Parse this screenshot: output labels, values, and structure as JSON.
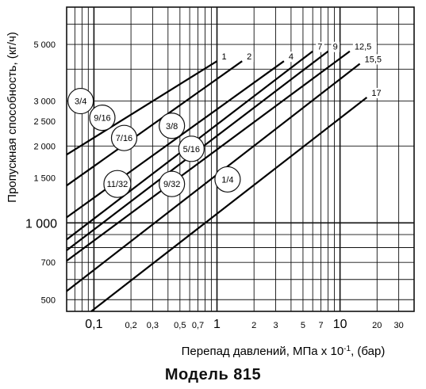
{
  "chart_data": {
    "type": "line",
    "title": "",
    "caption": "Модель 815",
    "xlabel_main": "Перепад давлений, МПа x 10",
    "xlabel_sup": "-1",
    "xlabel_tail": ", (бар)",
    "ylabel": "Пропускная способность, (кг/ч)",
    "x_scale": "log",
    "y_scale": "log",
    "xlim": [
      0.06,
      40
    ],
    "ylim": [
      450,
      7000
    ],
    "x_ticks": [
      {
        "value": 0.1,
        "label": "0,1",
        "major": true
      },
      {
        "value": 0.2,
        "label": "0,2",
        "major": false
      },
      {
        "value": 0.3,
        "label": "0,3",
        "major": false
      },
      {
        "value": 0.5,
        "label": "0,5",
        "major": false
      },
      {
        "value": 0.7,
        "label": "0,7",
        "major": false
      },
      {
        "value": 1,
        "label": "1",
        "major": true
      },
      {
        "value": 2,
        "label": "2",
        "major": false
      },
      {
        "value": 3,
        "label": "3",
        "major": false
      },
      {
        "value": 5,
        "label": "5",
        "major": false
      },
      {
        "value": 7,
        "label": "7",
        "major": false
      },
      {
        "value": 10,
        "label": "10",
        "major": true
      },
      {
        "value": 20,
        "label": "20",
        "major": false
      },
      {
        "value": 30,
        "label": "30",
        "major": false
      }
    ],
    "y_ticks": [
      {
        "value": 500,
        "label": "500",
        "major": false
      },
      {
        "value": 700,
        "label": "700",
        "major": false
      },
      {
        "value": 1000,
        "label": "1 000",
        "major": true
      },
      {
        "value": 1500,
        "label": "1 500",
        "major": false
      },
      {
        "value": 2000,
        "label": "2 000",
        "major": false
      },
      {
        "value": 2500,
        "label": "2 500",
        "major": false
      },
      {
        "value": 3000,
        "label": "3 000",
        "major": false
      },
      {
        "value": 5000,
        "label": "5 000",
        "major": false
      }
    ],
    "grid": true,
    "series": [
      {
        "name": "1",
        "x": [
          0.06,
          1.0
        ],
        "y": [
          1850,
          4300
        ]
      },
      {
        "name": "2",
        "x": [
          0.06,
          1.6
        ],
        "y": [
          1400,
          4300
        ]
      },
      {
        "name": "4",
        "x": [
          0.06,
          3.5
        ],
        "y": [
          1050,
          4300
        ]
      },
      {
        "name": "7",
        "x": [
          0.06,
          6.0
        ],
        "y": [
          860,
          4700
        ]
      },
      {
        "name": "9",
        "x": [
          0.06,
          8.0
        ],
        "y": [
          780,
          4700
        ]
      },
      {
        "name": "12,5",
        "x": [
          0.06,
          12.0
        ],
        "y": [
          710,
          4700
        ]
      },
      {
        "name": "15,5",
        "x": [
          0.06,
          14.5
        ],
        "y": [
          540,
          4200
        ]
      },
      {
        "name": "17",
        "x": [
          0.095,
          16.5
        ],
        "y": [
          450,
          3100
        ]
      }
    ],
    "annotations": [
      {
        "label": "3/4",
        "x": 0.078,
        "y": 3000
      },
      {
        "label": "9/16",
        "x": 0.117,
        "y": 2580
      },
      {
        "label": "7/16",
        "x": 0.176,
        "y": 2150
      },
      {
        "label": "3/8",
        "x": 0.43,
        "y": 2400
      },
      {
        "label": "5/16",
        "x": 0.62,
        "y": 1950
      },
      {
        "label": "11/32",
        "x": 0.155,
        "y": 1420
      },
      {
        "label": "9/32",
        "x": 0.43,
        "y": 1420
      },
      {
        "label": "1/4",
        "x": 1.22,
        "y": 1480
      }
    ]
  }
}
